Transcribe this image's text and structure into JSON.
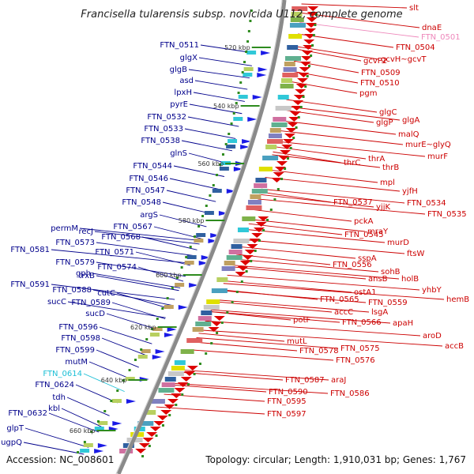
{
  "title": "Francisella tularensis subsp. novicida U112, complete genome",
  "footer": {
    "accession": "Accession: NC_008601",
    "summary": "Topology: circular; Length: 1,910,031 bp; Genes: 1,767"
  },
  "colors": {
    "left_label": "#00008b",
    "left_highlight": "#1bbfd6",
    "right_label": "#cc0000",
    "right_faded": "#ee88bb",
    "backbone": "#8a8a8a",
    "tick": "#2e8b1e"
  },
  "kbp_ticks": [
    "520 kbp",
    "540 kbp",
    "560 kbp",
    "580 kbp",
    "600 kbp",
    "620 kbp",
    "640 kbp",
    "660 kbp"
  ],
  "left_labels": [
    "FTN_0511",
    "glgX",
    "glgB",
    "asd",
    "lpxH",
    "pyrE",
    "FTN_0532",
    "FTN_0533",
    "FTN_0538",
    "glnS",
    "FTN_0544",
    "FTN_0546",
    "FTN_0547",
    "FTN_0548",
    "argS",
    "FTN_0567",
    "permM",
    "recJ",
    "FTN_0568",
    "FTN_0573",
    "FTN_0571",
    "FTN_0581",
    "FTN_0579",
    "FTN_0574",
    "gph",
    "trxB",
    "FTN_0591",
    "FTN_0588",
    "cutC",
    "sucC",
    "FTN_0589",
    "sucD",
    "FTN_0596",
    "FTN_0598",
    "FTN_0599",
    "mutM",
    "FTN_0614",
    "FTN_0624",
    "tdh",
    "kbl",
    "FTN_0632",
    "glpT",
    "ugpQ"
  ],
  "right_labels": [
    "slt",
    "dnaE",
    "FTN_0501",
    "FTN_0504",
    "gcvP2",
    "gcvH~gcvT",
    "FTN_0509",
    "FTN_0510",
    "pgm",
    "glgC",
    "glgP",
    "glgA",
    "malQ",
    "murE~glyQ",
    "murF",
    "thrC",
    "thrA",
    "thrB",
    "mpl",
    "yjfH",
    "FTN_0537",
    "yjjK",
    "FTN_0534",
    "FTN_0535",
    "pckA",
    "mraY",
    "FTN_0545",
    "murD",
    "ftsW",
    "sspA",
    "FTN_0556",
    "sohB",
    "ansB",
    "holB",
    "yhbY",
    "hemB",
    "ostA1",
    "FTN_0565",
    "FTN_0559",
    "accC",
    "lsgA",
    "FTN_0566",
    "apaH",
    "aroD",
    "accB",
    "potF",
    "mutL",
    "FTN_0578",
    "FTN_0575",
    "FTN_0576",
    "FTN_0587",
    "araJ",
    "FTN_0590",
    "FTN_0586",
    "FTN_0595",
    "FTN_0597"
  ]
}
